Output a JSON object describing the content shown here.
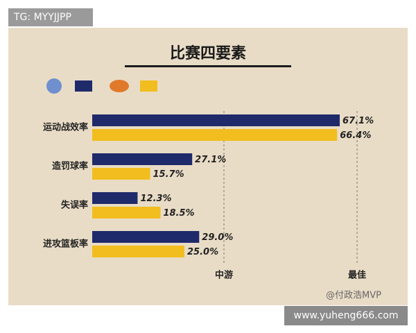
{
  "chart_data": {
    "type": "hbar",
    "title": "比赛四要素",
    "categories": [
      "运动战效率",
      "造罚球率",
      "失误率",
      "进攻篮板率"
    ],
    "series": [
      {
        "color": "#1f2a6b",
        "values": [
          67.1,
          27.1,
          12.3,
          29.0
        ],
        "value_labels": [
          "67.1%",
          "27.1%",
          "12.3%",
          "29.0%"
        ]
      },
      {
        "color": "#f2bd1e",
        "values": [
          66.4,
          15.7,
          18.5,
          25.0
        ],
        "value_labels": [
          "66.4%",
          "15.7%",
          "18.5%",
          "25.0%"
        ]
      }
    ],
    "reference_labels": [
      "中游",
      "最佳"
    ]
  },
  "watermarks": {
    "top_left": "TG: MYYJJPP",
    "credit": "@付政浩MVP",
    "site": "www.yuheng666.com"
  }
}
